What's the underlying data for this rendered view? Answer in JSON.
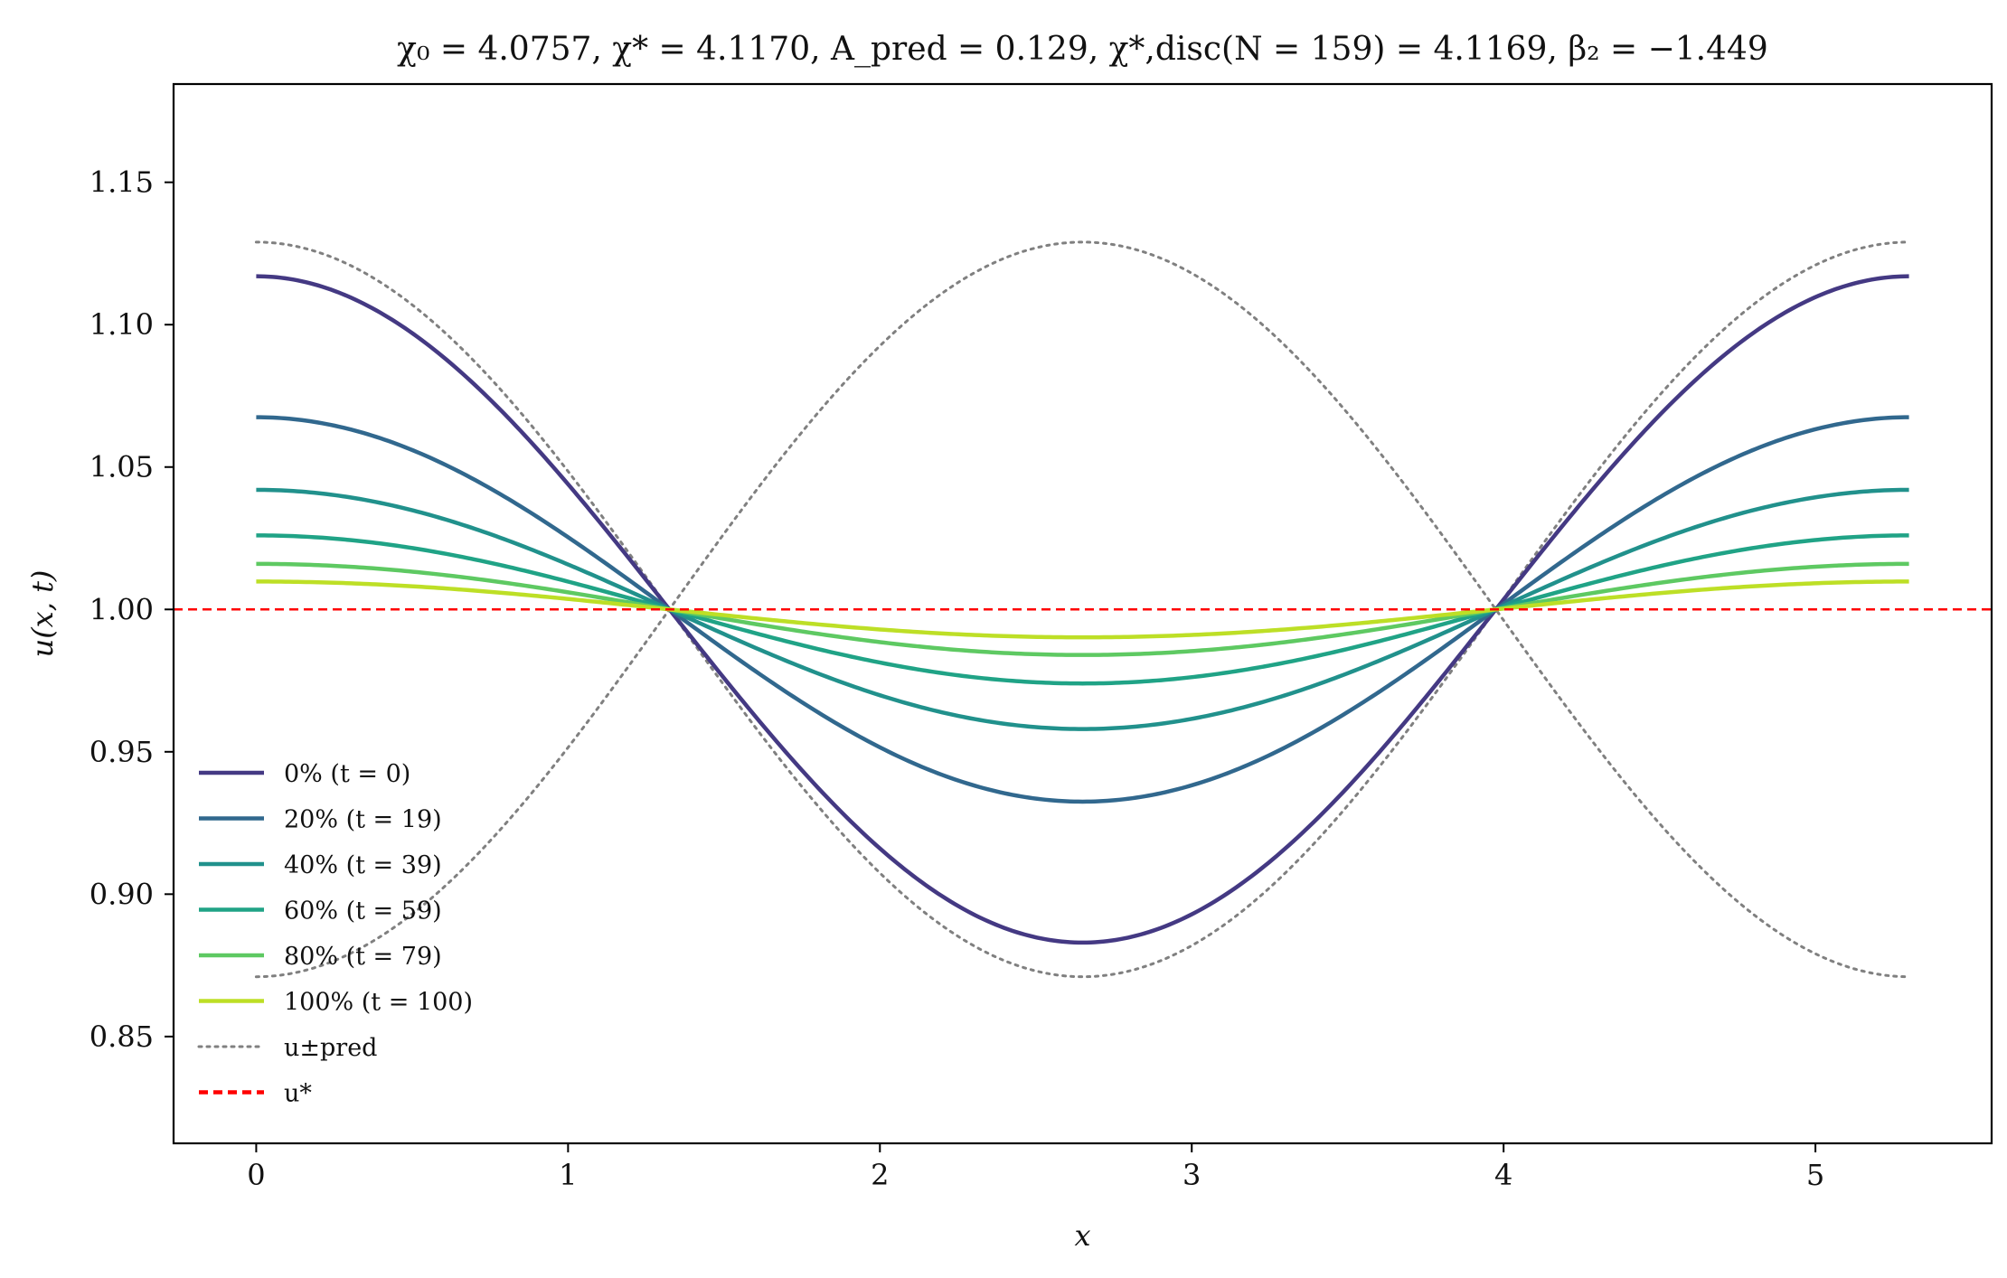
{
  "chart_data": {
    "type": "line",
    "title": "χ₀ = 4.0757, χ* = 4.1170, A_pred = 0.129, χ*,disc(N = 159) = 4.1169, β₂ = −1.449",
    "xlabel": "x",
    "ylabel": "u(x, t)",
    "xlim": [
      -0.265,
      5.565
    ],
    "ylim": [
      0.8125,
      1.1845
    ],
    "xticks": [
      0,
      1,
      2,
      3,
      4,
      5
    ],
    "xtick_labels": [
      "0",
      "1",
      "2",
      "3",
      "4",
      "5"
    ],
    "yticks": [
      0.85,
      0.9,
      0.95,
      1.0,
      1.05,
      1.1,
      1.15
    ],
    "ytick_labels": [
      "0.85",
      "0.90",
      "0.95",
      "1.00",
      "1.05",
      "1.10",
      "1.15"
    ],
    "grid": false,
    "legend_position": "lower-left",
    "x_domain": [
      0,
      5.3
    ],
    "x_nodes": [
      1.325,
      3.975
    ],
    "series": [
      {
        "name": "0% (t = 0)",
        "color": "#443983",
        "style": "solid",
        "amplitude": 0.117
      },
      {
        "name": "20% (t = 19)",
        "color": "#31688e",
        "style": "solid",
        "amplitude": 0.0675
      },
      {
        "name": "40% (t = 39)",
        "color": "#21918c",
        "style": "solid",
        "amplitude": 0.042
      },
      {
        "name": "60% (t = 59)",
        "color": "#20a386",
        "style": "solid",
        "amplitude": 0.026
      },
      {
        "name": "80% (t = 79)",
        "color": "#5ec962",
        "style": "solid",
        "amplitude": 0.016
      },
      {
        "name": "100% (t = 100)",
        "color": "#bddf26",
        "style": "solid",
        "amplitude": 0.0098
      }
    ],
    "envelope": {
      "name": "u±pred",
      "color": "#808080",
      "style": "dotted",
      "amplitude": 0.129
    },
    "reference": {
      "name": "u*",
      "color": "#ff0000",
      "style": "dashed",
      "value": 1.0
    }
  }
}
